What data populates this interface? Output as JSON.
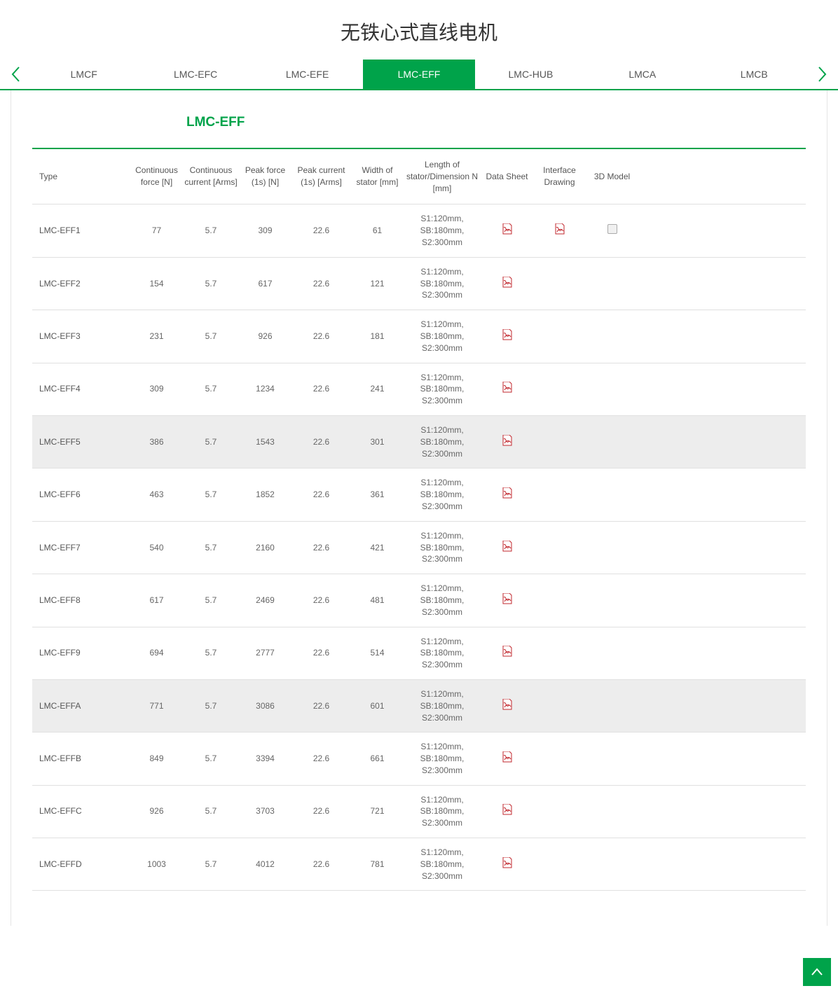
{
  "page_title": "无铁心式直线电机",
  "active_tab_index": 3,
  "tabs": [
    "LMCF",
    "LMC-EFC",
    "LMC-EFE",
    "LMC-EFF",
    "LMC-HUB",
    "LMCA",
    "LMCB"
  ],
  "section_title": "LMC-EFF",
  "colors": {
    "accent": "#00a34a",
    "pdf_red": "#c1272d"
  },
  "columns": [
    "Type",
    "Continuous force [N]",
    "Continuous current [Arms]",
    "Peak force (1s) [N]",
    "Peak current (1s) [Arms]",
    "Width of stator [mm]",
    "Length of stator/Dimension N [mm]",
    "Data Sheet",
    "Interface Drawing",
    "3D Model"
  ],
  "rows": [
    {
      "type": "LMC-EFF1",
      "cf": "77",
      "cc": "5.7",
      "pf": "309",
      "pc": "22.6",
      "w": "61",
      "len": "S1:120mm, SB:180mm, S2:300mm",
      "ds": true,
      "id": true,
      "m3d": true,
      "hl": false
    },
    {
      "type": "LMC-EFF2",
      "cf": "154",
      "cc": "5.7",
      "pf": "617",
      "pc": "22.6",
      "w": "121",
      "len": "S1:120mm, SB:180mm, S2:300mm",
      "ds": true,
      "id": false,
      "m3d": false,
      "hl": false
    },
    {
      "type": "LMC-EFF3",
      "cf": "231",
      "cc": "5.7",
      "pf": "926",
      "pc": "22.6",
      "w": "181",
      "len": "S1:120mm, SB:180mm, S2:300mm",
      "ds": true,
      "id": false,
      "m3d": false,
      "hl": false
    },
    {
      "type": "LMC-EFF4",
      "cf": "309",
      "cc": "5.7",
      "pf": "1234",
      "pc": "22.6",
      "w": "241",
      "len": "S1:120mm, SB:180mm, S2:300mm",
      "ds": true,
      "id": false,
      "m3d": false,
      "hl": false
    },
    {
      "type": "LMC-EFF5",
      "cf": "386",
      "cc": "5.7",
      "pf": "1543",
      "pc": "22.6",
      "w": "301",
      "len": "S1:120mm, SB:180mm, S2:300mm",
      "ds": true,
      "id": false,
      "m3d": false,
      "hl": true
    },
    {
      "type": "LMC-EFF6",
      "cf": "463",
      "cc": "5.7",
      "pf": "1852",
      "pc": "22.6",
      "w": "361",
      "len": "S1:120mm, SB:180mm, S2:300mm",
      "ds": true,
      "id": false,
      "m3d": false,
      "hl": false
    },
    {
      "type": "LMC-EFF7",
      "cf": "540",
      "cc": "5.7",
      "pf": "2160",
      "pc": "22.6",
      "w": "421",
      "len": "S1:120mm, SB:180mm, S2:300mm",
      "ds": true,
      "id": false,
      "m3d": false,
      "hl": false
    },
    {
      "type": "LMC-EFF8",
      "cf": "617",
      "cc": "5.7",
      "pf": "2469",
      "pc": "22.6",
      "w": "481",
      "len": "S1:120mm, SB:180mm, S2:300mm",
      "ds": true,
      "id": false,
      "m3d": false,
      "hl": false
    },
    {
      "type": "LMC-EFF9",
      "cf": "694",
      "cc": "5.7",
      "pf": "2777",
      "pc": "22.6",
      "w": "514",
      "len": "S1:120mm, SB:180mm, S2:300mm",
      "ds": true,
      "id": false,
      "m3d": false,
      "hl": false
    },
    {
      "type": "LMC-EFFA",
      "cf": "771",
      "cc": "5.7",
      "pf": "3086",
      "pc": "22.6",
      "w": "601",
      "len": "S1:120mm, SB:180mm, S2:300mm",
      "ds": true,
      "id": false,
      "m3d": false,
      "hl": true
    },
    {
      "type": "LMC-EFFB",
      "cf": "849",
      "cc": "5.7",
      "pf": "3394",
      "pc": "22.6",
      "w": "661",
      "len": "S1:120mm, SB:180mm, S2:300mm",
      "ds": true,
      "id": false,
      "m3d": false,
      "hl": false
    },
    {
      "type": "LMC-EFFC",
      "cf": "926",
      "cc": "5.7",
      "pf": "3703",
      "pc": "22.6",
      "w": "721",
      "len": "S1:120mm, SB:180mm, S2:300mm",
      "ds": true,
      "id": false,
      "m3d": false,
      "hl": false
    },
    {
      "type": "LMC-EFFD",
      "cf": "1003",
      "cc": "5.7",
      "pf": "4012",
      "pc": "22.6",
      "w": "781",
      "len": "S1:120mm, SB:180mm, S2:300mm",
      "ds": true,
      "id": false,
      "m3d": false,
      "hl": false
    }
  ]
}
